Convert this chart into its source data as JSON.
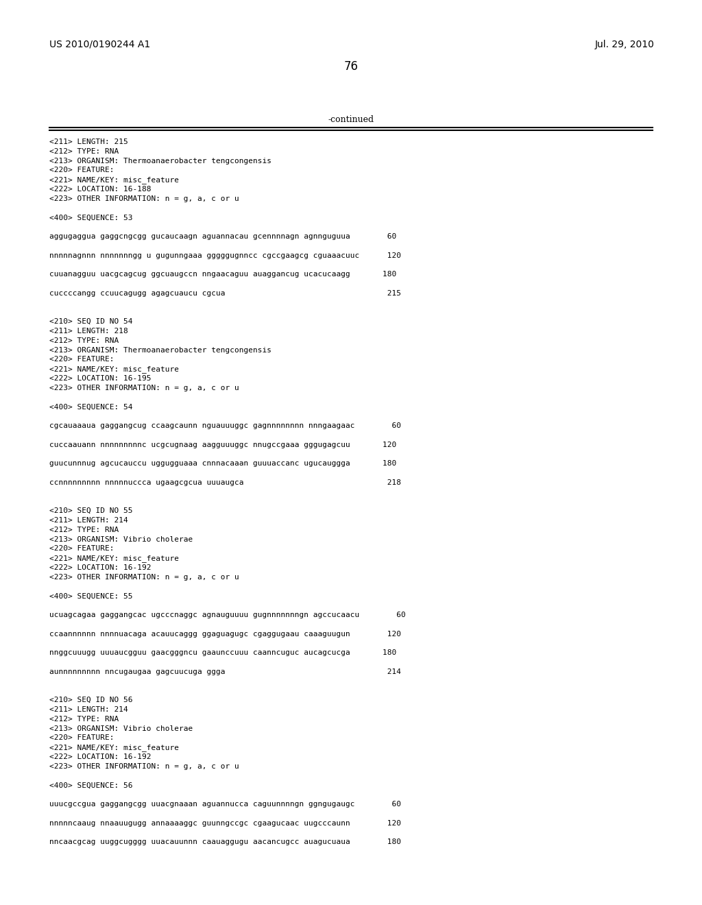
{
  "header_left": "US 2010/0190244 A1",
  "header_right": "Jul. 29, 2010",
  "page_number": "76",
  "continued_label": "-continued",
  "background_color": "#ffffff",
  "text_color": "#000000",
  "lines": [
    "<211> LENGTH: 215",
    "<212> TYPE: RNA",
    "<213> ORGANISM: Thermoanaerobacter tengcongensis",
    "<220> FEATURE:",
    "<221> NAME/KEY: misc_feature",
    "<222> LOCATION: 16-188",
    "<223> OTHER INFORMATION: n = g, a, c or u",
    "",
    "<400> SEQUENCE: 53",
    "",
    "aggugaggua gaggcngcgg gucaucaagn aguannacau gcennnnagn agnnguguua        60",
    "",
    "nnnnnagnnn nnnnnnngg u gugunngaaa gggggugnncc cgccgaagcg cguaaacuuc      120",
    "",
    "cuuanagguu uacgcagcug ggcuaugccn nngaacaguu auaggancug ucacucaagg       180",
    "",
    "cuccccangg ccuucagugg agagcuaucu cgcua                                   215",
    "",
    "",
    "<210> SEQ ID NO 54",
    "<211> LENGTH: 218",
    "<212> TYPE: RNA",
    "<213> ORGANISM: Thermoanaerobacter tengcongensis",
    "<220> FEATURE:",
    "<221> NAME/KEY: misc_feature",
    "<222> LOCATION: 16-195",
    "<223> OTHER INFORMATION: n = g, a, c or u",
    "",
    "<400> SEQUENCE: 54",
    "",
    "cgcauaaaua gaggangcug ccaagcaunn nguauuuggc gagnnnnnnnn nnngaagaac        60",
    "",
    "cuccaauann nnnnnnnnnc ucgcugnaag aagguuuggc nnugccgaaa gggugagcuu       120",
    "",
    "guucunnnug agcucauccu uggugguaaa cnnnacaaan guuuaccanc ugucauggga       180",
    "",
    "ccnnnnnnnnn nnnnnuccca ugaagcgcua uuuaugca                               218",
    "",
    "",
    "<210> SEQ ID NO 55",
    "<211> LENGTH: 214",
    "<212> TYPE: RNA",
    "<213> ORGANISM: Vibrio cholerae",
    "<220> FEATURE:",
    "<221> NAME/KEY: misc_feature",
    "<222> LOCATION: 16-192",
    "<223> OTHER INFORMATION: n = g, a, c or u",
    "",
    "<400> SEQUENCE: 55",
    "",
    "ucuagcagaa gaggangcac ugcccnaggc agnauguuuu gugnnnnnnngn agccucaacu        60",
    "",
    "ccaannnnnn nnnnuacaga acauucaggg ggaguagugc cgaggugaau caaaguugun        120",
    "",
    "nnggcuuugg uuuaucgguu gaacgggncu gaaunccuuu caanncuguc aucagcucga       180",
    "",
    "aunnnnnnnnn nncugaugaa gagcuucuga ggga                                   214",
    "",
    "",
    "<210> SEQ ID NO 56",
    "<211> LENGTH: 214",
    "<212> TYPE: RNA",
    "<213> ORGANISM: Vibrio cholerae",
    "<220> FEATURE:",
    "<221> NAME/KEY: misc_feature",
    "<222> LOCATION: 16-192",
    "<223> OTHER INFORMATION: n = g, a, c or u",
    "",
    "<400> SEQUENCE: 56",
    "",
    "uuucgccgua gaggangcgg uuacgnaaan aguannucca caguunnnngn ggngugaugc        60",
    "",
    "nnnnncaaug nnaauugugg annaaaaggc guunngccgc cgaagucaac uugcccaunn        120",
    "",
    "nncaacgcag uuggcugggg uuacauunnn caauaggugu aacancugcc auagucuaua        180"
  ]
}
